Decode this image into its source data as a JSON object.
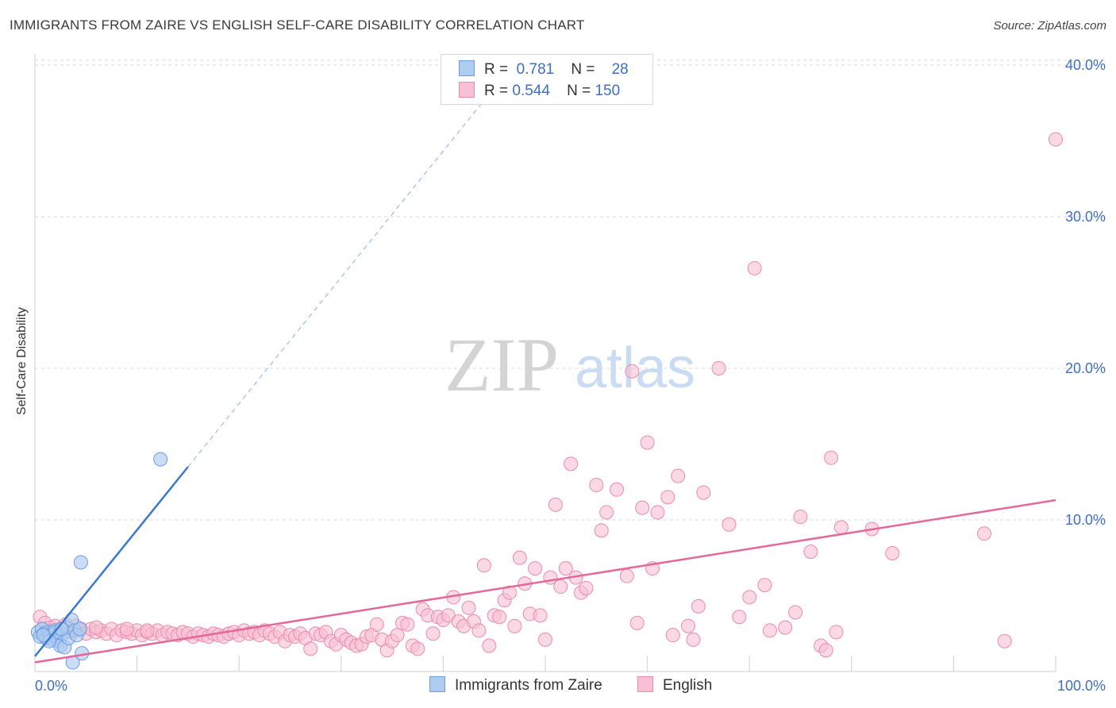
{
  "title": "IMMIGRANTS FROM ZAIRE VS ENGLISH SELF-CARE DISABILITY CORRELATION CHART",
  "source": "Source: ZipAtlas.com",
  "watermark": {
    "zip": "ZIP",
    "atlas": "atlas"
  },
  "legend": {
    "rows": [
      {
        "r_label": "R =",
        "r_value": "0.781",
        "n_label": "N =",
        "n_value": "28"
      },
      {
        "r_label": "R =",
        "r_value": "0.544",
        "n_label": "N =",
        "n_value": "150"
      }
    ]
  },
  "colors": {
    "blue_fill": "#aecbf0",
    "blue_stroke": "#6e9be0",
    "blue_line": "#3a78d0",
    "pink_fill": "#f8c0d2",
    "pink_stroke": "#ec8aab",
    "pink_line": "#e4689a",
    "grid": "#d9d9d9",
    "tick_label": "#3d6fc4"
  },
  "chart_data": {
    "type": "scatter",
    "title": "IMMIGRANTS FROM ZAIRE VS ENGLISH SELF-CARE DISABILITY CORRELATION CHART",
    "xlabel": "",
    "ylabel": "Self-Care Disability",
    "xlim": [
      0,
      100
    ],
    "ylim": [
      0,
      42
    ],
    "x_tick_labels": [
      "0.0%",
      "100.0%"
    ],
    "y_ticks": [
      10,
      20,
      30,
      40
    ],
    "y_tick_labels": [
      "10.0%",
      "20.0%",
      "30.0%",
      "40.0%"
    ],
    "series": [
      {
        "name": "Immigrants from Zaire",
        "R": 0.781,
        "N": 28,
        "trend": {
          "x0": 0,
          "y0": 1.0,
          "x1": 15,
          "y1": 13.5,
          "x_dash_end": 44.5
        },
        "points": [
          [
            0.3,
            2.6
          ],
          [
            0.5,
            2.3
          ],
          [
            0.7,
            2.8
          ],
          [
            0.9,
            2.5
          ],
          [
            1.1,
            2.2
          ],
          [
            1.3,
            2.6
          ],
          [
            1.5,
            2.4
          ],
          [
            1.7,
            2.1
          ],
          [
            1.9,
            2.7
          ],
          [
            2.1,
            2.3
          ],
          [
            2.3,
            2.0
          ],
          [
            2.5,
            1.7
          ],
          [
            2.7,
            2.5
          ],
          [
            2.9,
            1.6
          ],
          [
            3.1,
            2.9
          ],
          [
            3.3,
            2.2
          ],
          [
            3.6,
            3.4
          ],
          [
            3.9,
            2.7
          ],
          [
            4.1,
            2.4
          ],
          [
            4.4,
            2.8
          ],
          [
            2.0,
            2.6
          ],
          [
            1.4,
            2.0
          ],
          [
            2.6,
            2.8
          ],
          [
            0.8,
            2.4
          ],
          [
            3.7,
            0.6
          ],
          [
            4.6,
            1.2
          ],
          [
            4.5,
            7.2
          ],
          [
            12.3,
            14.0
          ]
        ]
      },
      {
        "name": "English",
        "R": 0.544,
        "N": 150,
        "trend": {
          "x0": 0,
          "y0": 0.6,
          "x1": 100,
          "y1": 11.3
        },
        "points": [
          [
            0.5,
            3.6
          ],
          [
            1.0,
            3.2
          ],
          [
            1.5,
            2.9
          ],
          [
            2.0,
            3.0
          ],
          [
            2.5,
            2.8
          ],
          [
            3.0,
            3.1
          ],
          [
            3.5,
            2.6
          ],
          [
            4.0,
            3.0
          ],
          [
            4.5,
            2.8
          ],
          [
            5.0,
            2.5
          ],
          [
            5.5,
            2.8
          ],
          [
            6.0,
            2.6
          ],
          [
            6.5,
            2.7
          ],
          [
            7.0,
            2.5
          ],
          [
            7.5,
            2.8
          ],
          [
            8.0,
            2.4
          ],
          [
            8.5,
            2.7
          ],
          [
            9.0,
            2.6
          ],
          [
            9.5,
            2.5
          ],
          [
            10.0,
            2.7
          ],
          [
            10.5,
            2.4
          ],
          [
            11.0,
            2.6
          ],
          [
            11.5,
            2.5
          ],
          [
            12.0,
            2.7
          ],
          [
            12.5,
            2.4
          ],
          [
            13.0,
            2.6
          ],
          [
            13.5,
            2.5
          ],
          [
            14.0,
            2.4
          ],
          [
            14.5,
            2.6
          ],
          [
            15.0,
            2.5
          ],
          [
            15.5,
            2.3
          ],
          [
            16.0,
            2.5
          ],
          [
            16.5,
            2.4
          ],
          [
            17.0,
            2.3
          ],
          [
            17.5,
            2.5
          ],
          [
            18.0,
            2.4
          ],
          [
            18.5,
            2.3
          ],
          [
            19.0,
            2.5
          ],
          [
            19.5,
            2.6
          ],
          [
            20.0,
            2.4
          ],
          [
            20.5,
            2.7
          ],
          [
            21.0,
            2.5
          ],
          [
            21.5,
            2.6
          ],
          [
            22.0,
            2.4
          ],
          [
            22.5,
            2.7
          ],
          [
            23.0,
            2.5
          ],
          [
            23.5,
            2.3
          ],
          [
            24.0,
            2.6
          ],
          [
            24.5,
            2.0
          ],
          [
            25.0,
            2.4
          ],
          [
            25.5,
            2.3
          ],
          [
            26.0,
            2.5
          ],
          [
            26.5,
            2.2
          ],
          [
            27.0,
            1.5
          ],
          [
            27.5,
            2.5
          ],
          [
            28.0,
            2.4
          ],
          [
            28.5,
            2.6
          ],
          [
            29.0,
            2.0
          ],
          [
            29.5,
            1.8
          ],
          [
            30.0,
            2.4
          ],
          [
            30.5,
            2.1
          ],
          [
            31.0,
            1.9
          ],
          [
            31.5,
            1.7
          ],
          [
            32.0,
            1.8
          ],
          [
            32.5,
            2.3
          ],
          [
            33.0,
            2.4
          ],
          [
            33.5,
            3.1
          ],
          [
            34.0,
            2.1
          ],
          [
            34.5,
            1.4
          ],
          [
            35.0,
            2.0
          ],
          [
            35.5,
            2.4
          ],
          [
            36.0,
            3.2
          ],
          [
            36.5,
            3.1
          ],
          [
            37.0,
            1.7
          ],
          [
            37.5,
            1.5
          ],
          [
            38.0,
            4.1
          ],
          [
            38.5,
            3.7
          ],
          [
            39.0,
            2.5
          ],
          [
            39.5,
            3.6
          ],
          [
            40.0,
            3.4
          ],
          [
            40.5,
            3.7
          ],
          [
            41.0,
            4.9
          ],
          [
            41.5,
            3.3
          ],
          [
            42.0,
            3.0
          ],
          [
            42.5,
            4.2
          ],
          [
            43.0,
            3.3
          ],
          [
            43.5,
            2.7
          ],
          [
            44.0,
            7.0
          ],
          [
            44.5,
            1.7
          ],
          [
            45.0,
            3.7
          ],
          [
            45.5,
            3.6
          ],
          [
            46.0,
            4.7
          ],
          [
            46.5,
            5.2
          ],
          [
            47.0,
            3.0
          ],
          [
            47.5,
            7.5
          ],
          [
            48.0,
            5.8
          ],
          [
            48.5,
            3.8
          ],
          [
            49.0,
            6.8
          ],
          [
            49.5,
            3.7
          ],
          [
            50.0,
            2.1
          ],
          [
            50.5,
            6.2
          ],
          [
            51.0,
            11.0
          ],
          [
            51.5,
            5.6
          ],
          [
            52.0,
            6.8
          ],
          [
            52.5,
            13.7
          ],
          [
            53.0,
            6.2
          ],
          [
            53.5,
            5.2
          ],
          [
            54.0,
            5.5
          ],
          [
            55.0,
            12.3
          ],
          [
            55.5,
            9.3
          ],
          [
            56.0,
            10.5
          ],
          [
            57.0,
            12.0
          ],
          [
            58.0,
            6.3
          ],
          [
            58.5,
            19.8
          ],
          [
            59.0,
            3.2
          ],
          [
            59.5,
            10.8
          ],
          [
            60.0,
            15.1
          ],
          [
            60.5,
            6.8
          ],
          [
            61.0,
            10.5
          ],
          [
            62.0,
            11.5
          ],
          [
            62.5,
            2.4
          ],
          [
            63.0,
            12.9
          ],
          [
            64.0,
            3.0
          ],
          [
            64.5,
            2.1
          ],
          [
            65.0,
            4.3
          ],
          [
            65.5,
            11.8
          ],
          [
            67.0,
            20.0
          ],
          [
            68.0,
            9.7
          ],
          [
            69.0,
            3.6
          ],
          [
            70.0,
            4.9
          ],
          [
            70.5,
            26.6
          ],
          [
            71.5,
            5.7
          ],
          [
            72.0,
            2.7
          ],
          [
            73.5,
            2.9
          ],
          [
            74.5,
            3.9
          ],
          [
            75.0,
            10.2
          ],
          [
            76.0,
            7.9
          ],
          [
            77.0,
            1.7
          ],
          [
            77.5,
            1.4
          ],
          [
            78.0,
            14.1
          ],
          [
            78.5,
            2.6
          ],
          [
            79.0,
            9.5
          ],
          [
            82.0,
            9.4
          ],
          [
            84.0,
            7.8
          ],
          [
            93.0,
            9.1
          ],
          [
            95.0,
            2.0
          ],
          [
            100.0,
            35.1
          ],
          [
            11.0,
            2.7
          ],
          [
            6.0,
            2.9
          ],
          [
            9.0,
            2.8
          ]
        ]
      }
    ]
  },
  "bottom_legend": [
    "Immigrants from Zaire",
    "English"
  ]
}
